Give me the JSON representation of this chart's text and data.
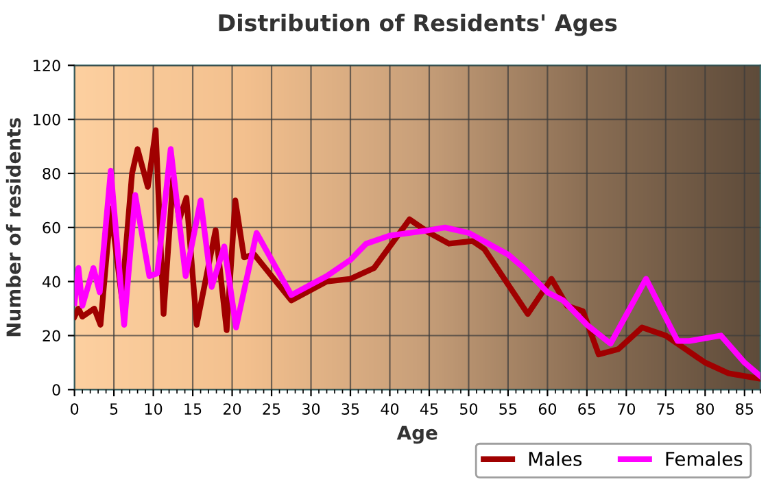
{
  "chart_data": {
    "type": "line",
    "title": "Distribution of Residents' Ages",
    "xlabel": "Age",
    "ylabel": "Number of residents",
    "xlim": [
      0,
      87
    ],
    "ylim": [
      0,
      120
    ],
    "xticks": [
      0,
      5,
      10,
      15,
      20,
      25,
      30,
      35,
      40,
      45,
      50,
      55,
      60,
      65,
      70,
      75,
      80,
      85
    ],
    "yticks": [
      0,
      20,
      40,
      60,
      80,
      100,
      120
    ],
    "grid": true,
    "legend": "bottom right",
    "series": [
      {
        "name": "Males",
        "color": "#a00000",
        "x": [
          0,
          0.5,
          1,
          2.5,
          3.3,
          4.6,
          6,
          7.3,
          8,
          9.3,
          10.3,
          11.3,
          12.5,
          13.3,
          14.2,
          15.5,
          17.9,
          19.3,
          20.4,
          21.5,
          22.8,
          27.5,
          32,
          35,
          38,
          42.5,
          45,
          47.5,
          50.5,
          52,
          57.5,
          60.5,
          62.5,
          64.5,
          66.5,
          69,
          72,
          75,
          80,
          83,
          87
        ],
        "values": [
          27,
          30,
          27,
          30,
          24,
          67,
          34,
          80,
          89,
          75,
          96,
          28,
          78,
          63,
          71,
          24,
          59,
          22,
          70,
          49,
          50,
          33,
          40,
          41,
          45,
          63,
          58,
          54,
          55,
          52,
          28,
          41,
          31,
          29,
          13,
          15,
          23,
          20,
          10,
          6,
          4
        ]
      },
      {
        "name": "Females",
        "color": "#ff00ff",
        "x": [
          0,
          0.5,
          1,
          2.4,
          3.2,
          4.6,
          6.3,
          7.7,
          9.5,
          10.5,
          12.2,
          14.1,
          16,
          17.4,
          19,
          20.5,
          23.1,
          27.5,
          32,
          35,
          37,
          40,
          45,
          47,
          50,
          55,
          57,
          60,
          62,
          65,
          68,
          72.5,
          76.5,
          78,
          82,
          85,
          87
        ],
        "values": [
          32,
          45,
          31,
          45,
          36,
          81,
          24,
          72,
          42,
          43,
          89,
          42,
          70,
          38,
          53,
          23,
          58,
          35,
          42,
          48,
          54,
          57,
          59,
          60,
          58,
          50,
          45,
          36,
          33,
          24,
          17,
          41,
          18,
          18,
          20,
          10,
          5
        ]
      }
    ]
  }
}
